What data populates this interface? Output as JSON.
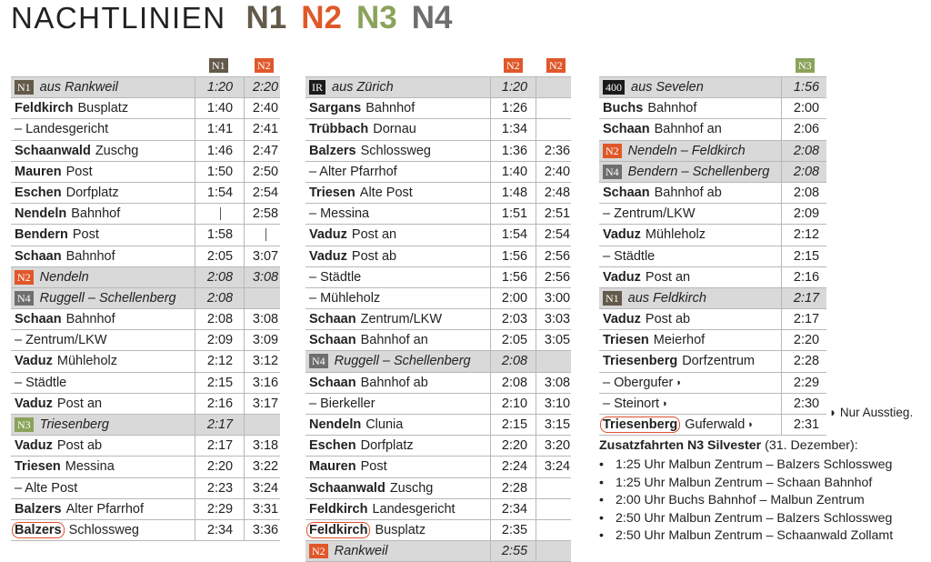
{
  "title": {
    "word": "NACHTLINIEN",
    "lines": [
      "N1",
      "N2",
      "N3",
      "N4"
    ]
  },
  "colors": {
    "N1": "#645a4a",
    "N2": "#e0582a",
    "N3": "#8aa35a",
    "N4": "#6e6e6e",
    "IR": "#1a1a1a",
    "400": "#1a1a1a",
    "row_gray": "#d9d9d9"
  },
  "col1": {
    "headers": [
      "N1",
      "N2"
    ],
    "rows": [
      {
        "badge": "N1",
        "label": "aus Rankweil",
        "gray": true,
        "t1": "1:20",
        "t2": "2:20"
      },
      {
        "b": "Feldkirch",
        "rest": "Busplatz",
        "t1": "1:40",
        "t2": "2:40"
      },
      {
        "b": "",
        "rest": "– Landesgericht",
        "t1": "1:41",
        "t2": "2:41"
      },
      {
        "b": "Schaanwald",
        "rest": "Zuschg",
        "t1": "1:46",
        "t2": "2:47"
      },
      {
        "b": "Mauren",
        "rest": "Post",
        "t1": "1:50",
        "t2": "2:50"
      },
      {
        "b": "Eschen",
        "rest": "Dorfplatz",
        "t1": "1:54",
        "t2": "2:54"
      },
      {
        "b": "Nendeln",
        "rest": "Bahnhof",
        "t1": "|",
        "t2": "2:58"
      },
      {
        "b": "Bendern",
        "rest": "Post",
        "t1": "1:58",
        "t2": "|"
      },
      {
        "b": "Schaan",
        "rest": "Bahnhof",
        "t1": "2:05",
        "t2": "3:07"
      },
      {
        "badge": "N2",
        "label": "Nendeln",
        "gray": true,
        "t1": "2:08",
        "t2": "3:08"
      },
      {
        "badge": "N4",
        "label": "Ruggell – Schellenberg",
        "gray": true,
        "t1": "2:08",
        "t2": ""
      },
      {
        "b": "Schaan",
        "rest": "Bahnhof",
        "t1": "2:08",
        "t2": "3:08"
      },
      {
        "b": "",
        "rest": "– Zentrum/LKW",
        "t1": "2:09",
        "t2": "3:09"
      },
      {
        "b": "Vaduz",
        "rest": "Mühleholz",
        "t1": "2:12",
        "t2": "3:12"
      },
      {
        "b": "",
        "rest": "– Städtle",
        "t1": "2:15",
        "t2": "3:16"
      },
      {
        "b": "Vaduz",
        "rest": "Post an",
        "t1": "2:16",
        "t2": "3:17"
      },
      {
        "badge": "N3",
        "label": "Triesenberg",
        "gray": true,
        "t1": "2:17",
        "t2": ""
      },
      {
        "b": "Vaduz",
        "rest": "Post ab",
        "t1": "2:17",
        "t2": "3:18"
      },
      {
        "b": "Triesen",
        "rest": "Messina",
        "t1": "2:20",
        "t2": "3:22"
      },
      {
        "b": "",
        "rest": "– Alte Post",
        "t1": "2:23",
        "t2": "3:24"
      },
      {
        "b": "Balzers",
        "rest": "Alter Pfarrhof",
        "t1": "2:29",
        "t2": "3:31"
      },
      {
        "b": "Balzers",
        "rest": "Schlossweg",
        "circled": true,
        "t1": "2:34",
        "t2": "3:36"
      }
    ]
  },
  "col2": {
    "headers": [
      "N2",
      "N2"
    ],
    "rows": [
      {
        "badge": "IR",
        "label": "aus Zürich",
        "gray": true,
        "t1": "1:20",
        "t2": ""
      },
      {
        "b": "Sargans",
        "rest": "Bahnhof",
        "t1": "1:26",
        "t2": ""
      },
      {
        "b": "Trübbach",
        "rest": "Dornau",
        "t1": "1:34",
        "t2": ""
      },
      {
        "b": "Balzers",
        "rest": "Schlossweg",
        "t1": "1:36",
        "t2": "2:36"
      },
      {
        "b": "",
        "rest": "– Alter Pfarrhof",
        "t1": "1:40",
        "t2": "2:40"
      },
      {
        "b": "Triesen",
        "rest": "Alte Post",
        "t1": "1:48",
        "t2": "2:48"
      },
      {
        "b": "",
        "rest": "– Messina",
        "t1": "1:51",
        "t2": "2:51"
      },
      {
        "b": "Vaduz",
        "rest": "Post an",
        "t1": "1:54",
        "t2": "2:54"
      },
      {
        "b": "Vaduz",
        "rest": "Post ab",
        "t1": "1:56",
        "t2": "2:56"
      },
      {
        "b": "",
        "rest": "– Städtle",
        "t1": "1:56",
        "t2": "2:56"
      },
      {
        "b": "",
        "rest": "– Mühleholz",
        "t1": "2:00",
        "t2": "3:00"
      },
      {
        "b": "Schaan",
        "rest": "Zentrum/LKW",
        "t1": "2:03",
        "t2": "3:03"
      },
      {
        "b": "Schaan",
        "rest": "Bahnhof an",
        "t1": "2:05",
        "t2": "3:05"
      },
      {
        "badge": "N4",
        "label": "Ruggell – Schellenberg",
        "gray": true,
        "t1": "2:08",
        "t2": ""
      },
      {
        "b": "Schaan",
        "rest": "Bahnhof ab",
        "t1": "2:08",
        "t2": "3:08"
      },
      {
        "b": "",
        "rest": "– Bierkeller",
        "t1": "2:10",
        "t2": "3:10"
      },
      {
        "b": "Nendeln",
        "rest": "Clunia",
        "t1": "2:15",
        "t2": "3:15"
      },
      {
        "b": "Eschen",
        "rest": "Dorfplatz",
        "t1": "2:20",
        "t2": "3:20"
      },
      {
        "b": "Mauren",
        "rest": "Post",
        "t1": "2:24",
        "t2": "3:24"
      },
      {
        "b": "Schaanwald",
        "rest": "Zuschg",
        "t1": "2:28",
        "t2": ""
      },
      {
        "b": "Feldkirch",
        "rest": "Landesgericht",
        "t1": "2:34",
        "t2": ""
      },
      {
        "b": "Feldkirch",
        "rest": "Busplatz",
        "circled": true,
        "t1": "2:35",
        "t2": ""
      },
      {
        "badge": "N2",
        "label": "Rankweil",
        "gray": true,
        "t1": "2:55",
        "t2": ""
      }
    ]
  },
  "col3": {
    "headers": [
      "N3"
    ],
    "rows": [
      {
        "badge": "400",
        "label": "aus Sevelen",
        "gray": true,
        "t1": "1:56"
      },
      {
        "b": "Buchs",
        "rest": "Bahnhof",
        "t1": "2:00"
      },
      {
        "b": "Schaan",
        "rest": "Bahnhof an",
        "t1": "2:06"
      },
      {
        "badge": "N2",
        "label": "Nendeln – Feldkirch",
        "gray": true,
        "t1": "2:08"
      },
      {
        "badge": "N4",
        "label": "Bendern – Schellenberg",
        "gray": true,
        "t1": "2:08"
      },
      {
        "b": "Schaan",
        "rest": "Bahnhof ab",
        "t1": "2:08"
      },
      {
        "b": "",
        "rest": "– Zentrum/LKW",
        "t1": "2:09"
      },
      {
        "b": "Vaduz",
        "rest": "Mühleholz",
        "t1": "2:12"
      },
      {
        "b": "",
        "rest": "– Städtle",
        "t1": "2:15"
      },
      {
        "b": "Vaduz",
        "rest": "Post an",
        "t1": "2:16"
      },
      {
        "badge": "N1",
        "label": "aus Feldkirch",
        "gray": true,
        "t1": "2:17"
      },
      {
        "b": "Vaduz",
        "rest": "Post ab",
        "t1": "2:17"
      },
      {
        "b": "Triesen",
        "rest": "Meierhof",
        "t1": "2:20"
      },
      {
        "b": "Triesenberg",
        "rest": "Dorfzentrum",
        "t1": "2:28"
      },
      {
        "b": "",
        "rest": "– Obergufer",
        "half": true,
        "t1": "2:29"
      },
      {
        "b": "",
        "rest": "– Steinort",
        "half": true,
        "t1": "2:30"
      },
      {
        "b": "Triesenberg",
        "rest": "Guferwald",
        "circled": true,
        "half": true,
        "t1": "2:31"
      }
    ]
  },
  "note": "◗ Nur Ausstieg.",
  "extra": {
    "title_bold": "Zusatzfahrten N3 Silvester",
    "title_rest": " (31. Dezember):",
    "items": [
      "1:25 Uhr Malbun Zentrum – Balzers Schlossweg",
      "1:25 Uhr Malbun Zentrum – Schaan Bahnhof",
      "2:00 Uhr Buchs Bahnhof – Malbun Zentrum",
      "2:50 Uhr Malbun Zentrum – Balzers Schlossweg",
      "2:50 Uhr Malbun Zentrum – Schaanwald Zollamt"
    ]
  }
}
